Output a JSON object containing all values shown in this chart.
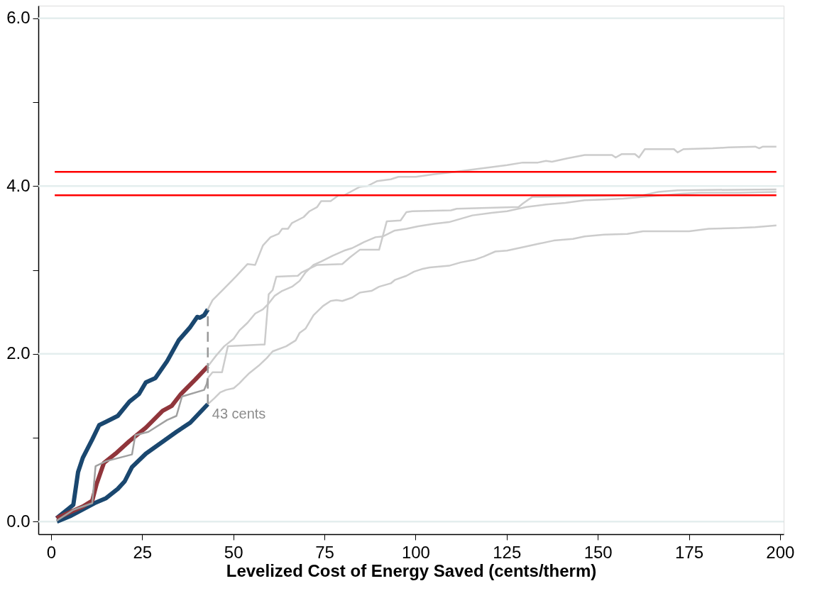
{
  "chart_data": {
    "type": "line",
    "xlabel": "Levelized Cost of Energy Saved (cents/therm)",
    "xlim": [
      -3.5,
      201
    ],
    "xticks": [
      0,
      25,
      50,
      75,
      100,
      125,
      150,
      175,
      200
    ],
    "ylim": [
      -0.15,
      6.15
    ],
    "yticks": [
      {
        "value": 0,
        "label": "0.0"
      },
      {
        "value": 1,
        "label": null
      },
      {
        "value": 2,
        "label": "2.0"
      },
      {
        "value": 3,
        "label": null
      },
      {
        "value": 4,
        "label": "4.0"
      },
      {
        "value": 5,
        "label": null
      },
      {
        "value": 6,
        "label": "6.0"
      }
    ],
    "grid": "y",
    "line_style": "solid",
    "marker": "none",
    "series": [
      {
        "color": "#cccccc",
        "x": [
          43,
          44.3,
          47.5,
          50.7,
          53.9,
          56.0,
          58.1,
          60.2,
          62.4,
          63.4,
          65.0,
          66.1,
          69.3,
          70.9,
          73,
          74.1,
          76.7,
          78.9,
          80.4,
          84.7,
          86.8,
          89.5,
          93.2,
          95.3,
          100.1,
          104.9,
          109.2,
          114.5,
          119.8,
          125.1,
          129.4,
          133.6,
          135.8,
          137.4,
          141.6,
          146.4,
          153.9,
          154.9,
          156.5,
          160.2,
          161.3,
          162.9,
          170.9,
          171.9,
          173.5,
          181.5,
          185.8,
          193.2,
          194.3,
          195.3,
          199
        ],
        "values": [
          2.53,
          2.64,
          2.78,
          2.92,
          3.07,
          3.06,
          3.29,
          3.39,
          3.43,
          3.49,
          3.49,
          3.56,
          3.63,
          3.7,
          3.75,
          3.82,
          3.82,
          3.89,
          3.89,
          3.99,
          4.0,
          4.06,
          4.08,
          4.11,
          4.11,
          4.14,
          4.16,
          4.19,
          4.22,
          4.25,
          4.28,
          4.28,
          4.3,
          4.29,
          4.33,
          4.37,
          4.37,
          4.34,
          4.38,
          4.38,
          4.34,
          4.44,
          4.44,
          4.4,
          4.44,
          4.45,
          4.46,
          4.47,
          4.45,
          4.47,
          4.47
        ]
      },
      {
        "color": "#cccccc",
        "x": [
          43,
          45.3,
          47.5,
          50.1,
          51.7,
          53.9,
          56,
          58.1,
          59.7,
          61.3,
          63.4,
          66.1,
          68.2,
          69.8,
          72,
          74.1,
          77.3,
          80.4,
          82.6,
          85.8,
          89,
          91.1,
          94.3,
          97.5,
          100.7,
          105,
          109.2,
          112.4,
          115.6,
          120.9,
          125.1,
          130.4,
          135.8,
          141.1,
          146.4,
          151.7,
          157,
          162.4,
          167.7,
          173,
          178.3,
          183.6,
          189,
          199
        ],
        "values": [
          1.85,
          1.98,
          2.09,
          2.18,
          2.28,
          2.37,
          2.48,
          2.53,
          2.6,
          2.69,
          2.75,
          2.8,
          2.87,
          2.97,
          3.06,
          3.1,
          3.17,
          3.23,
          3.26,
          3.33,
          3.39,
          3.4,
          3.47,
          3.49,
          3.52,
          3.55,
          3.57,
          3.61,
          3.65,
          3.68,
          3.7,
          3.75,
          3.78,
          3.8,
          3.83,
          3.84,
          3.85,
          3.87,
          3.89,
          3.91,
          3.92,
          3.92,
          3.92,
          3.93
        ]
      },
      {
        "color": "#cccccc",
        "x": [
          43,
          44.3,
          46.9,
          48.5,
          57.6,
          58.6,
          59.7,
          60.8,
          61.8,
          67.7,
          68.7,
          73,
          79.9,
          82,
          84.7,
          90,
          92.1,
          95.9,
          97.5,
          99.1,
          109.7,
          111.3,
          128.3,
          129.4,
          132,
          162.4,
          166.6,
          171.9,
          199
        ],
        "values": [
          1.71,
          1.78,
          1.78,
          2.09,
          2.11,
          2.11,
          2.71,
          2.76,
          2.92,
          2.93,
          2.97,
          3.06,
          3.07,
          3.15,
          3.24,
          3.24,
          3.58,
          3.59,
          3.69,
          3.7,
          3.71,
          3.73,
          3.75,
          3.79,
          3.87,
          3.89,
          3.93,
          3.95,
          3.96
        ]
      },
      {
        "color": "#cccccc",
        "x": [
          43,
          44.8,
          46.4,
          48,
          50.1,
          51.7,
          52.8,
          54.4,
          57,
          59.2,
          60.8,
          64.5,
          67.1,
          68.2,
          69.8,
          72,
          74.6,
          76.7,
          78.3,
          79.9,
          82.6,
          84.7,
          87.9,
          90,
          93.2,
          94.3,
          97.5,
          99.6,
          101.7,
          103.9,
          109.2,
          112.4,
          116.1,
          118.7,
          121.9,
          125.1,
          129.4,
          133.6,
          137.9,
          143.2,
          146.4,
          151.7,
          158.1,
          162.4,
          175.1,
          180.4,
          188.9,
          193.2,
          199
        ],
        "values": [
          1.4,
          1.47,
          1.54,
          1.57,
          1.59,
          1.65,
          1.7,
          1.77,
          1.86,
          1.95,
          2.03,
          2.09,
          2.16,
          2.25,
          2.3,
          2.46,
          2.57,
          2.63,
          2.64,
          2.63,
          2.67,
          2.73,
          2.75,
          2.8,
          2.84,
          2.88,
          2.93,
          2.98,
          3.01,
          3.03,
          3.05,
          3.09,
          3.12,
          3.16,
          3.22,
          3.23,
          3.27,
          3.31,
          3.35,
          3.37,
          3.4,
          3.42,
          3.43,
          3.46,
          3.46,
          3.49,
          3.5,
          3.51,
          3.53
        ]
      },
      {
        "color": "#1a476f",
        "x": [
          1.5,
          6.1,
          7.4,
          8.7,
          11.3,
          13.2,
          15.1,
          18.3,
          21.5,
          24.1,
          26,
          28.6,
          31.8,
          35.0,
          38.2,
          40.1,
          40.8,
          42.0,
          43
        ],
        "values": [
          0.04,
          0.2,
          0.59,
          0.76,
          0.98,
          1.15,
          1.19,
          1.26,
          1.43,
          1.52,
          1.66,
          1.71,
          1.91,
          2.16,
          2.32,
          2.44,
          2.43,
          2.46,
          2.53
        ]
      },
      {
        "color": "#1a476f",
        "x": [
          1.6,
          5.5,
          11.9,
          15.1,
          18.3,
          20.2,
          22.2,
          26,
          29.9,
          34.4,
          38.2,
          43
        ],
        "values": [
          0.0,
          0.07,
          0.22,
          0.28,
          0.39,
          0.48,
          0.65,
          0.81,
          0.93,
          1.07,
          1.18,
          1.4
        ]
      },
      {
        "color": "#90353b",
        "x": [
          1.5,
          8.7,
          11.3,
          12.5,
          14.5,
          17.7,
          21.5,
          26,
          30.6,
          33.1,
          35.6,
          39.5,
          43
        ],
        "values": [
          0.04,
          0.18,
          0.25,
          0.45,
          0.7,
          0.81,
          0.96,
          1.12,
          1.32,
          1.38,
          1.52,
          1.69,
          1.85
        ]
      },
      {
        "color": "#a0a0a0",
        "x": [
          1.5,
          6.1,
          11.3,
          12.2,
          15.1,
          22.2,
          23.1,
          26.7,
          31.8,
          34.4,
          35.9,
          42.0,
          42.7,
          43
        ],
        "values": [
          0.01,
          0.14,
          0.22,
          0.66,
          0.72,
          0.8,
          1.03,
          1.07,
          1.21,
          1.26,
          1.49,
          1.57,
          1.64,
          1.71
        ]
      },
      {
        "color": "#ff0000",
        "x": [
          1,
          199
        ],
        "values": [
          4.17,
          4.17
        ]
      },
      {
        "color": "#ff0000",
        "x": [
          1,
          199
        ],
        "values": [
          3.89,
          3.89
        ]
      },
      {
        "color": "#999999",
        "x": [
          43,
          43
        ],
        "values": [
          1.4,
          2.53
        ],
        "line_style": "dashed"
      }
    ],
    "annotations": [
      {
        "text": "43 cents",
        "x": 43,
        "y": 1.4
      }
    ]
  }
}
